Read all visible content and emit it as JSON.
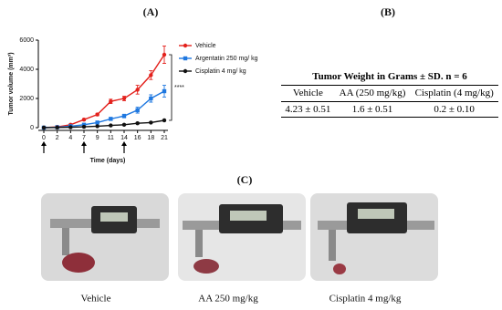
{
  "chart_data": {
    "type": "line",
    "panel_label": "(A)",
    "x_label": "Time (days)",
    "y_label": "Tumor volume (mm³)",
    "categories": [
      "0",
      "2",
      "4",
      "7",
      "9",
      "11",
      "14",
      "16",
      "18",
      "21"
    ],
    "ylim": [
      0,
      6000
    ],
    "yticks": [
      0,
      2000,
      4000,
      6000
    ],
    "annotation": "****",
    "series": [
      {
        "name": "Vehicle",
        "color": "#e3211c",
        "marker": "circle",
        "values": [
          0,
          50,
          200,
          550,
          900,
          1800,
          2000,
          2600,
          3600,
          5000
        ],
        "errors": [
          0,
          20,
          40,
          60,
          80,
          150,
          150,
          300,
          300,
          600
        ]
      },
      {
        "name": "Argentatin 250 mg/ kg",
        "color": "#1f78e0",
        "marker": "square",
        "values": [
          0,
          30,
          100,
          200,
          350,
          600,
          800,
          1200,
          2000,
          2500
        ],
        "errors": [
          0,
          15,
          30,
          50,
          60,
          100,
          120,
          200,
          250,
          400
        ]
      },
      {
        "name": "Cisplatin 4 mg/ kg",
        "color": "#111111",
        "marker": "circle",
        "values": [
          0,
          10,
          30,
          60,
          100,
          150,
          200,
          300,
          350,
          500
        ],
        "errors": [
          0,
          5,
          10,
          15,
          20,
          30,
          30,
          40,
          40,
          60
        ]
      }
    ]
  },
  "table": {
    "panel_label": "(B)",
    "title": "Tumor Weight in Grams ± SD. n = 6",
    "headers": [
      "Vehicle",
      "AA (250 mg/kg)",
      "Cisplatin (4 mg/kg)"
    ],
    "rows": [
      [
        "4.23 ± 0.51",
        "1.6 ± 0.51",
        "0.2 ± 0.10"
      ]
    ]
  },
  "photos": {
    "panel_label": "(C)",
    "captions": [
      "Vehicle",
      "AA 250 mg/kg",
      "Cisplatin 4 mg/kg"
    ]
  }
}
